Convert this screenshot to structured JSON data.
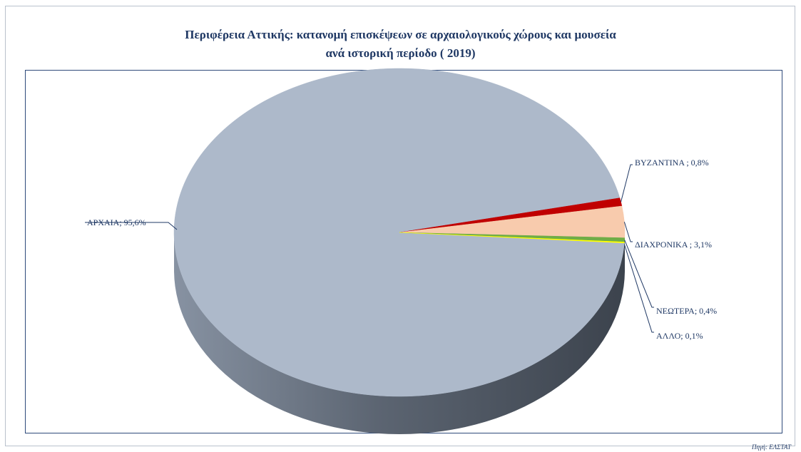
{
  "chart_data": {
    "type": "pie",
    "title_line1": "Περιφέρεια Αττικής: κατανομή επισκέψεων σε αρχαιολογικούς χώρους και μουσεία",
    "title_line2": "ανά  ιστορική περίοδο ( 2019)",
    "slices": [
      {
        "name": "ΑΡΧΑΙΑ",
        "value": 95.6,
        "label": "ΑΡΧΑΙΑ; 95,6%",
        "color": "#adb9ca"
      },
      {
        "name": "ΒΥΖΑΝΤΙΝΑ",
        "value": 0.8,
        "label": "ΒΥΖΑΝΤΙΝΑ ; 0,8%",
        "color": "#c00000"
      },
      {
        "name": "ΔΙΑΧΡΟΝΙΚΑ",
        "value": 3.1,
        "label": "ΔΙΑΧΡΟΝΙΚΑ ; 3,1%",
        "color": "#f8cbad"
      },
      {
        "name": "ΝΕΩΤΕΡΑ",
        "value": 0.4,
        "label": "ΝΕΩΤΕΡΑ; 0,4%",
        "color": "#70ad47"
      },
      {
        "name": "ΑΛΛΟ",
        "value": 0.1,
        "label": "ΑΛΛΟ; 0,1%",
        "color": "#ffff00"
      }
    ],
    "legend": "none"
  },
  "source": "Πηγή: ΕΛΣΤΑΤ"
}
